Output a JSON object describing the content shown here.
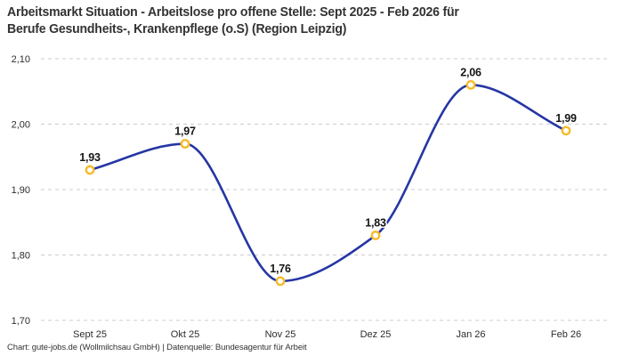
{
  "header": {
    "title_line1": "Arbeitsmarkt Situation - Arbeitslose pro offene Stelle: Sept 2025 - Feb 2026 für",
    "title_line2": "Berufe Gesundheits-, Krankenpflege (o.S) (Region Leipzig)"
  },
  "footer": {
    "text": "Chart: gute-jobs.de (Wollmilchsau GmbH) | Datenquelle: Bundesagentur für Arbeit"
  },
  "chart_data": {
    "type": "line",
    "title": "Arbeitsmarkt Situation - Arbeitslose pro offene Stelle: Sept 2025 - Feb 2026 für Berufe Gesundheits-, Krankenpflege (o.S) (Region Leipzig)",
    "categories": [
      "Sept 25",
      "Okt 25",
      "Nov 25",
      "Dez 25",
      "Jan 26",
      "Feb 26"
    ],
    "series": [
      {
        "name": "Arbeitslose pro offene Stelle",
        "values": [
          1.93,
          1.97,
          1.76,
          1.83,
          2.06,
          1.99
        ]
      }
    ],
    "point_labels": [
      "1,93",
      "1,97",
      "1,76",
      "1,83",
      "2,06",
      "1,99"
    ],
    "ylim": [
      1.7,
      2.1
    ],
    "ytick_labels": [
      "2,10",
      "2,00",
      "1,90",
      "1,80",
      "1,70"
    ],
    "xlabel": "",
    "ylabel": "",
    "grid": "horizontal-dashed",
    "legend": "none",
    "curve": "monotone",
    "colors": {
      "line": "#2536a4",
      "marker_ring": "#f6bb2a",
      "marker_fill": "#ffffff",
      "grid": "#cccccc",
      "axis_text": "#2d2d2d",
      "point_label": "#141414",
      "title": "#333333"
    }
  }
}
